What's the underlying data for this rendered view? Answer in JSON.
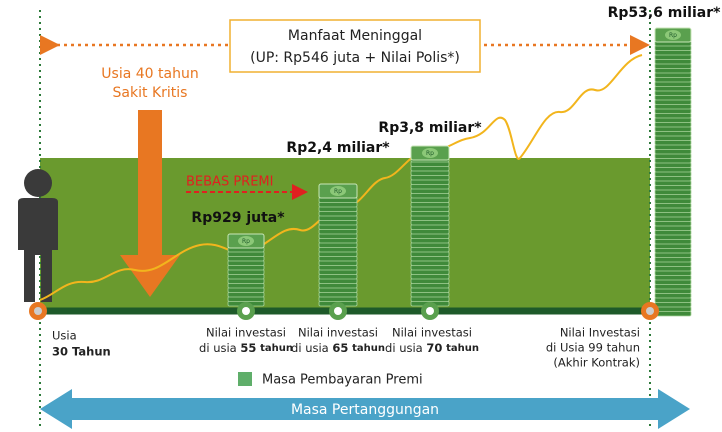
{
  "death_benefit": {
    "title": "Manfaat Meninggal",
    "detail": "(UP: Rp546 juta + Nilai Polis*)"
  },
  "critical_illness": [
    "Usia 40 tahun",
    "Sakit Kritis"
  ],
  "premium_waiver": "BEBAS PREMI",
  "bill_symbol": "Rp",
  "values": [
    "Rp929 juta*",
    "Rp2,4 miliar*",
    "Rp3,8 miliar*",
    "Rp53,6 miliar*"
  ],
  "milestones": [
    {
      "line1": "Usia",
      "line2": "30 Tahun"
    },
    {
      "line1": "Nilai investasi",
      "prefix": "di usia",
      "age": "55",
      "suffix": "tahun"
    },
    {
      "line1": "Nilai investasi",
      "prefix": "di usia",
      "age": "65",
      "suffix": "tahun"
    },
    {
      "line1": "Nilai investasi",
      "prefix": "di usia",
      "age": "70",
      "suffix": "tahun"
    },
    {
      "line1": "Nilai Investasi",
      "line2": "di Usia 99 tahun",
      "line3": "(Akhir Kontrak)"
    }
  ],
  "legend": "Masa Pembayaran Premi",
  "coverage": "Masa Pertanggungan"
}
